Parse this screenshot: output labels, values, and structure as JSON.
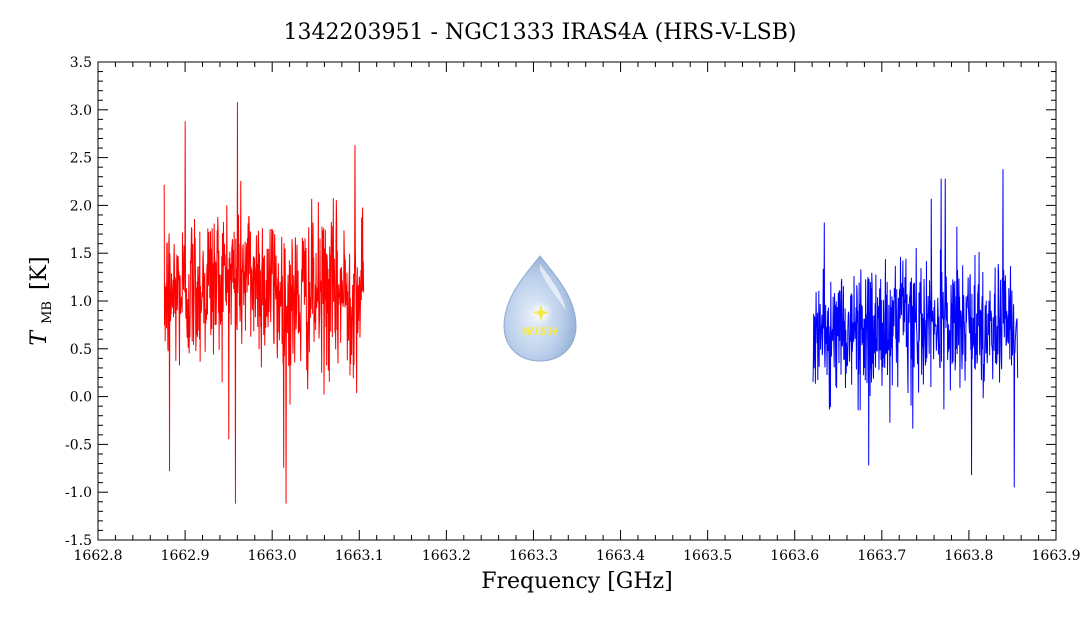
{
  "chart_data": {
    "type": "line",
    "title": "1342203951 - NGC1333 IRAS4A (HRS-V-LSB)",
    "xlabel": "Frequency [GHz]",
    "ylabel_main": "T",
    "ylabel_sub": "MB",
    "ylabel_unit": "[K]",
    "xlim": [
      1662.8,
      1663.9
    ],
    "ylim": [
      -1.5,
      3.5
    ],
    "xticks": [
      "1662.8",
      "1662.9",
      "1663.0",
      "1663.1",
      "1663.2",
      "1663.3",
      "1663.4",
      "1663.5",
      "1663.6",
      "1663.7",
      "1663.8",
      "1663.9"
    ],
    "yticks": [
      "-1.5",
      "-1.0",
      "-0.5",
      "0.0",
      "0.5",
      "1.0",
      "1.5",
      "2.0",
      "2.5",
      "3.0",
      "3.5"
    ],
    "series": [
      {
        "color": "#ff0000",
        "x_start": 1662.876,
        "x_end": 1663.105,
        "samples": 600,
        "mean_profile": [
          [
            1662.876,
            1.05
          ],
          [
            1662.93,
            1.2
          ],
          [
            1662.97,
            1.3
          ],
          [
            1663.0,
            1.15
          ],
          [
            1663.02,
            0.95
          ],
          [
            1663.04,
            1.05
          ],
          [
            1663.105,
            1.1
          ]
        ],
        "noise_sigma": 0.42,
        "spikes": [
          [
            1662.96,
            3.08
          ],
          [
            1662.958,
            -1.12
          ],
          [
            1663.016,
            -1.12
          ],
          [
            1662.882,
            -0.78
          ],
          [
            1662.9,
            2.88
          ],
          [
            1663.095,
            2.63
          ]
        ]
      },
      {
        "color": "#0000ff",
        "x_start": 1663.621,
        "x_end": 1663.856,
        "samples": 600,
        "mean_profile": [
          [
            1663.621,
            0.65
          ],
          [
            1663.7,
            0.7
          ],
          [
            1663.78,
            0.75
          ],
          [
            1663.856,
            0.7
          ]
        ],
        "noise_sigma": 0.33,
        "spikes": [
          [
            1663.839,
            2.38
          ],
          [
            1663.768,
            2.28
          ],
          [
            1663.773,
            2.28
          ],
          [
            1663.852,
            -0.95
          ],
          [
            1663.803,
            -0.82
          ],
          [
            1663.685,
            -0.72
          ]
        ]
      }
    ],
    "grid": false,
    "legend": "none"
  },
  "logo": {
    "text": "WISH",
    "color_body": "#a9c4e6",
    "color_highlight": "#e8f0fb",
    "color_star": "#f5e84a"
  }
}
